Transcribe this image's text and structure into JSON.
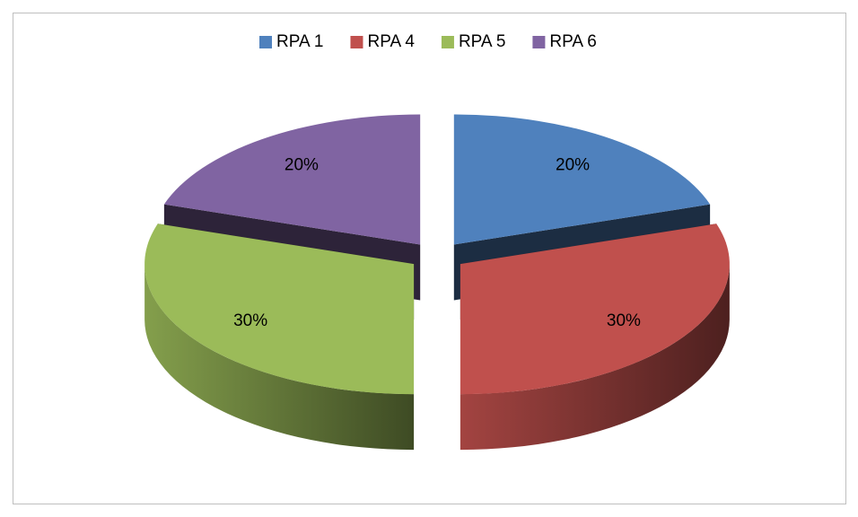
{
  "chart_data": {
    "type": "pie",
    "categories": [
      "RPA 1",
      "RPA 4",
      "RPA 5",
      "RPA 6"
    ],
    "values": [
      20,
      30,
      30,
      20
    ],
    "value_labels": [
      "20%",
      "30%",
      "30%",
      "20%"
    ],
    "colors": [
      "#4f81bd",
      "#c0504d",
      "#9bbb59",
      "#8064a2"
    ],
    "legend": "top"
  }
}
